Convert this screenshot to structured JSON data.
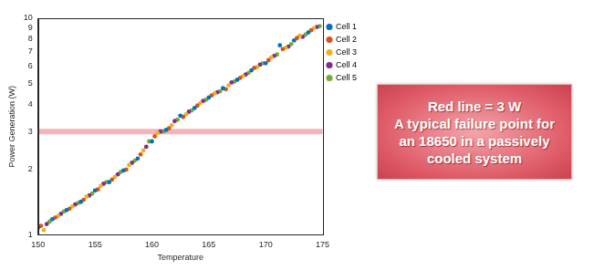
{
  "chart_data": {
    "type": "scatter",
    "x_label": "Temperature",
    "y_label": "Power Generation (W)",
    "xlim": [
      150,
      175
    ],
    "xticks": [
      150,
      155,
      160,
      165,
      170,
      175
    ],
    "ylim": [
      1,
      10
    ],
    "yticks": [
      1,
      2,
      3,
      4,
      5,
      6,
      7,
      8,
      9,
      10
    ],
    "log": "y",
    "grid": false,
    "legend": "upper right",
    "marker": "circle",
    "reference_line": {
      "value": 3,
      "color": "#f29aa3"
    },
    "annotation": {
      "title": "Red line = 3 W",
      "text": "A typical failure point for an 18650 in a passively cooled system"
    },
    "series": [
      {
        "name": "Cell 1",
        "color": "#0072bd",
        "x": [
          150,
          151.25,
          152.5,
          153.75,
          155,
          156.25,
          157.5,
          158.75,
          160,
          161.25,
          162.5,
          163.75,
          165,
          166.25,
          167.5,
          168.75,
          170,
          171.25,
          172.5,
          173.75
        ],
        "values": [
          1.08,
          1.18,
          1.3,
          1.42,
          1.6,
          1.75,
          1.98,
          2.25,
          2.7,
          3.05,
          3.55,
          3.85,
          4.3,
          4.75,
          5.2,
          5.75,
          6.2,
          7.5,
          7.9,
          8.6
        ]
      },
      {
        "name": "Cell 2",
        "color": "#d95319",
        "x": [
          150.25,
          151.5,
          152.75,
          154,
          155.25,
          156.5,
          157.75,
          159,
          160.25,
          161.5,
          162.75,
          164,
          165.25,
          166.5,
          167.75,
          169,
          170.25,
          171.5,
          172.75,
          174
        ],
        "values": [
          1.1,
          1.2,
          1.32,
          1.45,
          1.62,
          1.8,
          2.0,
          2.35,
          2.85,
          3.1,
          3.5,
          3.95,
          4.4,
          4.7,
          5.3,
          5.9,
          6.4,
          7.2,
          8.1,
          8.8
        ]
      },
      {
        "name": "Cell 3",
        "color": "#edb120",
        "x": [
          150.5,
          151.75,
          153,
          154.25,
          155.5,
          156.75,
          158,
          159.25,
          160.5,
          161.75,
          163,
          164.25,
          165.5,
          166.75,
          168,
          169.25,
          170.5,
          171.75,
          173,
          174.25
        ],
        "values": [
          1.05,
          1.22,
          1.35,
          1.5,
          1.68,
          1.85,
          2.1,
          2.45,
          2.95,
          3.2,
          3.6,
          4.05,
          4.5,
          4.9,
          5.4,
          5.95,
          6.6,
          7.3,
          8.3,
          9.0
        ]
      },
      {
        "name": "Cell 4",
        "color": "#7e2f8e",
        "x": [
          150.75,
          152,
          153.25,
          154.5,
          155.75,
          157,
          158.25,
          159.5,
          160.75,
          162,
          163.25,
          164.5,
          165.75,
          167,
          168.25,
          169.5,
          170.75,
          172,
          173.25,
          174.5
        ],
        "values": [
          1.12,
          1.25,
          1.38,
          1.52,
          1.72,
          1.9,
          2.15,
          2.55,
          3.0,
          3.35,
          3.7,
          4.15,
          4.55,
          5.05,
          5.5,
          6.1,
          6.7,
          7.4,
          8.2,
          9.1
        ]
      },
      {
        "name": "Cell 5",
        "color": "#77ac30",
        "x": [
          151,
          152.25,
          153.5,
          154.75,
          156,
          157.25,
          158.5,
          159.75,
          161,
          162.25,
          163.5,
          164.75,
          166,
          167.25,
          168.5,
          169.75,
          171,
          172.25,
          173.5,
          174.75
        ],
        "values": [
          1.15,
          1.28,
          1.4,
          1.55,
          1.75,
          1.95,
          2.2,
          2.7,
          3.0,
          3.4,
          3.75,
          4.2,
          4.6,
          5.1,
          5.6,
          6.2,
          6.8,
          7.6,
          8.4,
          9.2
        ]
      }
    ]
  }
}
